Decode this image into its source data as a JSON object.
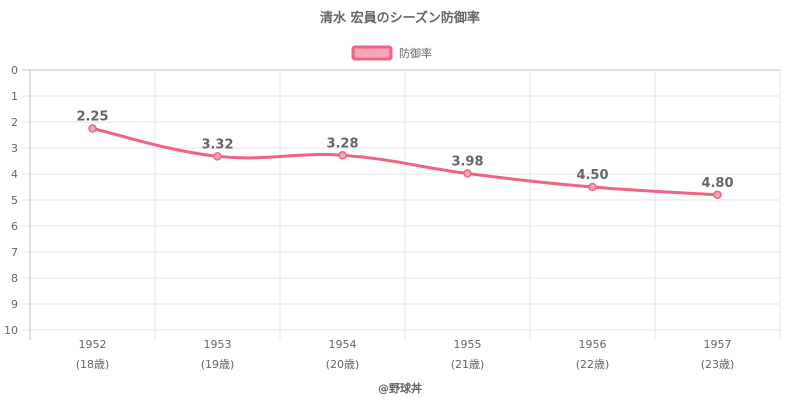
{
  "chart_data": {
    "type": "line",
    "title": "清水 宏員のシーズン防御率",
    "legend": {
      "label": "防御率",
      "placement": "top-center"
    },
    "categories": [
      "1952",
      "1953",
      "1954",
      "1955",
      "1956",
      "1957"
    ],
    "category_sublabels": [
      "(18歳)",
      "(19歳)",
      "(20歳)",
      "(21歳)",
      "(22歳)",
      "(23歳)"
    ],
    "series": [
      {
        "name": "防御率",
        "values": [
          2.25,
          3.32,
          3.28,
          3.98,
          4.5,
          4.8
        ],
        "labels": [
          "2.25",
          "3.32",
          "3.28",
          "3.98",
          "4.50",
          "4.80"
        ]
      }
    ],
    "y_ticks": [
      "0",
      "1",
      "2",
      "3",
      "4",
      "5",
      "6",
      "7",
      "8",
      "9",
      "10"
    ],
    "ylim": [
      0,
      10
    ],
    "y_reversed": true,
    "grid": true,
    "colors": {
      "line": "#f06384",
      "fill": "#f7a6b8",
      "text": "#666666"
    }
  },
  "credit": "@野球丼"
}
